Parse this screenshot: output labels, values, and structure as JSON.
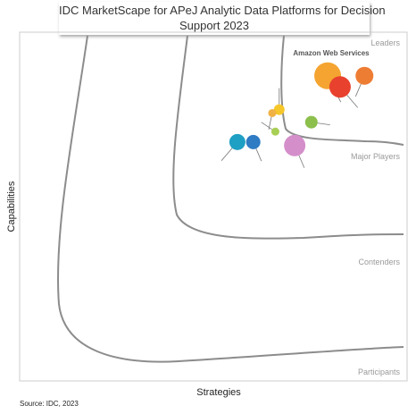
{
  "chart_data": {
    "type": "scatter",
    "title": "IDC MarketScape for APeJ Analytic Data Platforms for Decision Support 2023",
    "title_lines": [
      "IDC MarketScape for APeJ Analytic Data Platforms for Decision",
      "Support 2023"
    ],
    "xlabel": "Strategies",
    "ylabel": "Capabilities",
    "source": "Source: IDC, 2023",
    "xlim": [
      0,
      1
    ],
    "ylim": [
      0,
      1
    ],
    "grid": false,
    "categories": [
      "Leaders",
      "Major Players",
      "Contenders",
      "Participants"
    ],
    "points": [
      {
        "label": "Amazon Web Services",
        "x": 0.795,
        "y": 0.875,
        "size": 15,
        "color": "#F5A431"
      },
      {
        "label": "",
        "x": 0.89,
        "y": 0.875,
        "size": 10,
        "color": "#EE7D34"
      },
      {
        "label": "",
        "x": 0.827,
        "y": 0.843,
        "size": 12,
        "color": "#E8412E"
      },
      {
        "label": "",
        "x": 0.67,
        "y": 0.778,
        "size": 6,
        "color": "#F6C72A"
      },
      {
        "label": "",
        "x": 0.652,
        "y": 0.768,
        "size": 4.5,
        "color": "#F0B145"
      },
      {
        "label": "",
        "x": 0.753,
        "y": 0.742,
        "size": 7,
        "color": "#8CBF4C"
      },
      {
        "label": "",
        "x": 0.66,
        "y": 0.715,
        "size": 4.5,
        "color": "#A8CF55"
      },
      {
        "label": "",
        "x": 0.562,
        "y": 0.685,
        "size": 9,
        "color": "#1E9FC4"
      },
      {
        "label": "",
        "x": 0.603,
        "y": 0.685,
        "size": 8,
        "color": "#2F7BC4"
      },
      {
        "label": "",
        "x": 0.71,
        "y": 0.675,
        "size": 12,
        "color": "#D48FCB"
      }
    ],
    "colors": {
      "curve": "#8c8c8c",
      "frame": "#cccccc",
      "category_label": "#9a9a9a"
    }
  }
}
